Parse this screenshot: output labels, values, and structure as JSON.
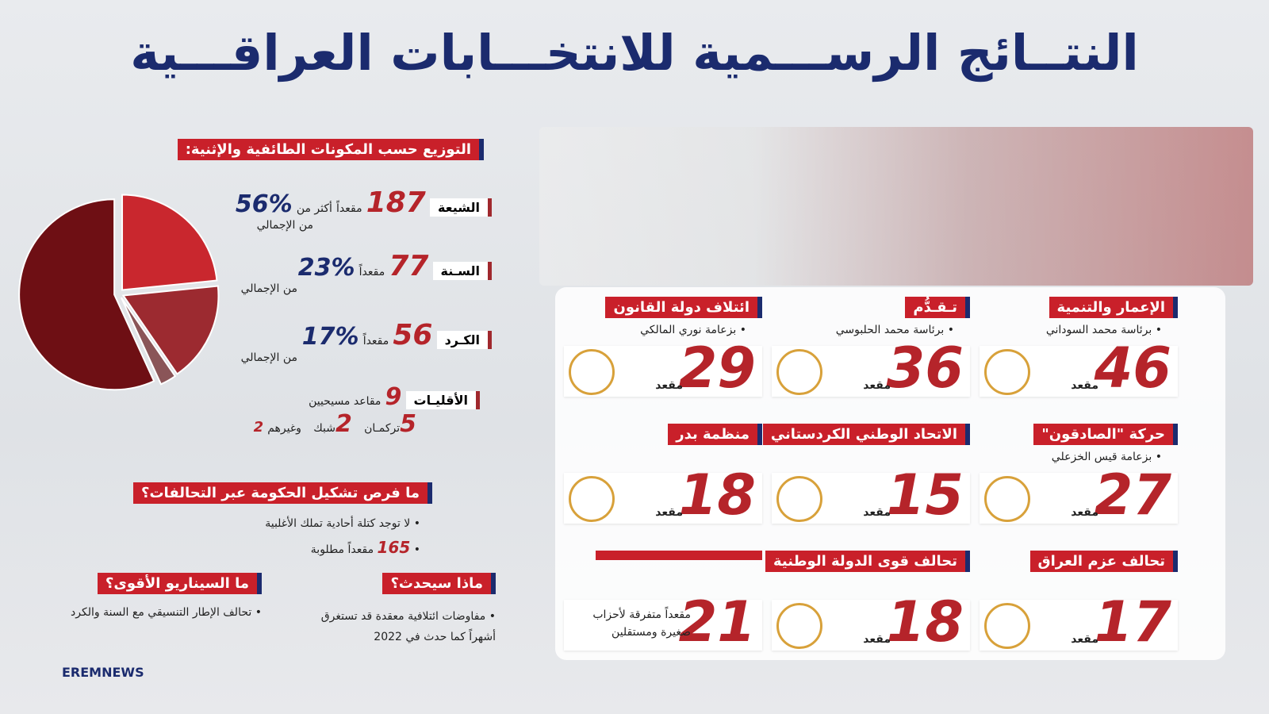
{
  "title": "النتــائج الرســـمية للانتخـــابات العراقـــية",
  "components": {
    "title": "التوزيع حسب المكونات الطائفية والإثنية:",
    "items": [
      {
        "name": "الشيعة",
        "seats": 187,
        "seats_unit": "مقعداً",
        "share_prefix": "أكثر من",
        "share": 56,
        "share_label": "%56",
        "share_suffix": "من الإجمالي",
        "color": "#6e0f14"
      },
      {
        "name": "السـنة",
        "seats": 77,
        "seats_unit": "مقعداً",
        "share": 23,
        "share_label": "%23",
        "share_suffix": "من الإجمالي",
        "color": "#c9272e"
      },
      {
        "name": "الكـرد",
        "seats": 56,
        "seats_unit": "مقعداً",
        "share": 17,
        "share_label": "%17",
        "share_suffix": "من الإجمالي",
        "color": "#9c2a30"
      },
      {
        "name": "الأقليـات",
        "seats": 9,
        "seats_unit": "مقاعد مسيحيين",
        "color": "#8a5558",
        "breakdown": [
          {
            "value": 5,
            "text": "تركمـان"
          },
          {
            "value": 2,
            "text": "شبك"
          },
          {
            "value": 2,
            "text": "وغيرهم"
          }
        ]
      }
    ]
  },
  "parties": [
    {
      "name": "الإعمار والتنمية",
      "leader": "برئاسة محمد السوداني",
      "seats": 46,
      "unit": "مقعد"
    },
    {
      "name": "تـقـدُّم",
      "leader": "برئاسة محمد الحلبوسي",
      "seats": 36,
      "unit": "مقعد"
    },
    {
      "name": "ائتلاف دولة القانون",
      "leader": "بزعامة نوري المالكي",
      "seats": 29,
      "unit": "مقعد"
    },
    {
      "name": "حركة \"الصادقون\"",
      "leader": "بزعامة قيس الخزعلي",
      "seats": 27,
      "unit": "مقعد"
    },
    {
      "name": "الاتحاد الوطني الكردستاني",
      "seats": 15,
      "unit": "مقعد"
    },
    {
      "name": "منظمة بدر",
      "seats": 18,
      "unit": "مقعد"
    },
    {
      "name": "تحالف عزم العراق",
      "seats": 17,
      "unit": "مقعد"
    },
    {
      "name": "تحالف قوى الدولة الوطنية",
      "seats": 18,
      "unit": "مقعد"
    },
    {
      "seats": 21,
      "note": "مقعداً متفرقة لأحزاب صغيرة ومستقلين"
    }
  ],
  "government": {
    "title": "ما فرص تشكيل الحكومة عبر التحالفات؟",
    "bullet": "لا توجد كتلة أحادية تملك الأغلبية",
    "required": 165,
    "required_text": "مقعداً مطلوبة"
  },
  "next": {
    "title": "ماذا سيحدث؟",
    "text": "مفاوضات ائتلافية معقدة قد تستغرق أشهراً كما حدث في 2022"
  },
  "scenario": {
    "title": "ما السيناريو الأقوى؟",
    "text": "تحالف الإطار التنسيقي مع السنة والكرد"
  },
  "footer": "EREMNEWS"
}
